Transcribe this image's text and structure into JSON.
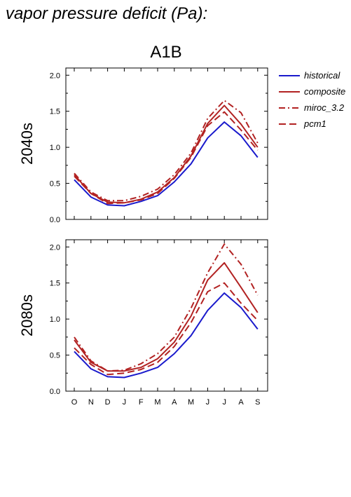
{
  "figure": {
    "title": "vapor pressure deficit (Pa):",
    "scenario": "A1B"
  },
  "legend": [
    {
      "name": "historical",
      "color": "#1a1acc",
      "dash": "solid"
    },
    {
      "name": "composite",
      "color": "#b22222",
      "dash": "solid"
    },
    {
      "name": "miroc_3.2",
      "color": "#b22222",
      "dash": "dashdot"
    },
    {
      "name": "pcm1",
      "color": "#b22222",
      "dash": "dashed"
    }
  ],
  "chart_data": [
    {
      "type": "line",
      "panel_label": "2040s",
      "categories": [
        "O",
        "N",
        "D",
        "J",
        "F",
        "M",
        "A",
        "M",
        "J",
        "J",
        "A",
        "S"
      ],
      "ylim": [
        0,
        2.1
      ],
      "yticks": [
        "0.0",
        "0.5",
        "1.0",
        "1.5",
        "2.0"
      ],
      "grid": false,
      "series": [
        {
          "name": "historical",
          "values": [
            0.55,
            0.31,
            0.2,
            0.19,
            0.25,
            0.33,
            0.52,
            0.77,
            1.13,
            1.35,
            1.16,
            0.86
          ]
        },
        {
          "name": "composite",
          "values": [
            0.62,
            0.36,
            0.24,
            0.23,
            0.28,
            0.38,
            0.58,
            0.88,
            1.33,
            1.58,
            1.32,
            1.0
          ]
        },
        {
          "name": "miroc_3.2",
          "values": [
            0.64,
            0.38,
            0.26,
            0.26,
            0.32,
            0.42,
            0.62,
            0.92,
            1.4,
            1.65,
            1.48,
            1.06
          ]
        },
        {
          "name": "pcm1",
          "values": [
            0.6,
            0.36,
            0.22,
            0.23,
            0.27,
            0.36,
            0.57,
            0.86,
            1.3,
            1.49,
            1.24,
            0.96
          ]
        }
      ]
    },
    {
      "type": "line",
      "panel_label": "2080s",
      "categories": [
        "O",
        "N",
        "D",
        "J",
        "F",
        "M",
        "A",
        "M",
        "J",
        "J",
        "A",
        "S"
      ],
      "ylim": [
        0,
        2.1
      ],
      "yticks": [
        "0.0",
        "0.5",
        "1.0",
        "1.5",
        "2.0"
      ],
      "grid": false,
      "series": [
        {
          "name": "historical",
          "values": [
            0.55,
            0.31,
            0.2,
            0.19,
            0.25,
            0.33,
            0.52,
            0.77,
            1.12,
            1.36,
            1.16,
            0.86
          ]
        },
        {
          "name": "composite",
          "values": [
            0.71,
            0.4,
            0.28,
            0.28,
            0.33,
            0.45,
            0.68,
            1.04,
            1.54,
            1.78,
            1.44,
            1.09
          ]
        },
        {
          "name": "miroc_3.2",
          "values": [
            0.75,
            0.42,
            0.28,
            0.29,
            0.38,
            0.52,
            0.75,
            1.15,
            1.64,
            2.04,
            1.76,
            1.33
          ]
        },
        {
          "name": "pcm1",
          "values": [
            0.6,
            0.37,
            0.23,
            0.25,
            0.3,
            0.4,
            0.62,
            0.95,
            1.38,
            1.5,
            1.22,
            0.98
          ]
        }
      ]
    }
  ]
}
